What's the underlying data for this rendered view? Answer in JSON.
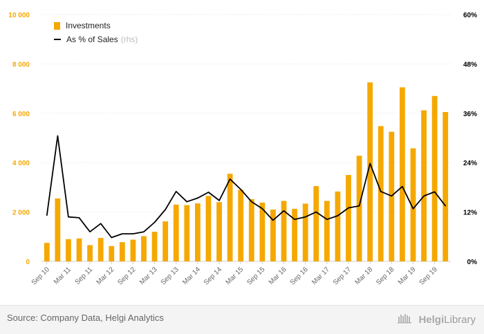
{
  "chart_data": {
    "type": "bar",
    "categories": [
      "Sep 10",
      "Dec 10",
      "Mar 11",
      "Jun 11",
      "Sep 11",
      "Dec 11",
      "Mar 12",
      "Jun 12",
      "Sep 12",
      "Dec 12",
      "Mar 13",
      "Jun 13",
      "Sep 13",
      "Dec 13",
      "Mar 14",
      "Jun 14",
      "Sep 14",
      "Dec 14",
      "Mar 15",
      "Jun 15",
      "Sep 15",
      "Dec 15",
      "Mar 16",
      "Jun 16",
      "Sep 16",
      "Dec 16",
      "Mar 17",
      "Jun 17",
      "Sep 17",
      "Dec 17",
      "Mar 18",
      "Jun 18",
      "Sep 18",
      "Dec 18",
      "Mar 19",
      "Jun 19",
      "Sep 19",
      "Dec 19"
    ],
    "tick_labels": [
      "Sep 10",
      "Mar 11",
      "Sep 11",
      "Mar 12",
      "Sep 12",
      "Mar 13",
      "Sep 13",
      "Mar 14",
      "Sep 14",
      "Mar 15",
      "Sep 15",
      "Mar 16",
      "Sep 16",
      "Mar 17",
      "Sep 17",
      "Mar 18",
      "Sep 18",
      "Mar 19",
      "Sep 19"
    ],
    "series": [
      {
        "name": "Investments",
        "axis": "left",
        "kind": "bar",
        "color": "#f5a800",
        "values": [
          750,
          2550,
          900,
          930,
          660,
          950,
          620,
          780,
          880,
          1020,
          1200,
          1620,
          2300,
          2280,
          2350,
          2650,
          2400,
          3550,
          2900,
          2520,
          2380,
          2100,
          2450,
          2130,
          2340,
          3050,
          2450,
          2830,
          3500,
          4280,
          7250,
          5480,
          5250,
          7050,
          4580,
          6120,
          6700,
          6050
        ]
      },
      {
        "name": "As % of Sales",
        "axis": "right",
        "kind": "line",
        "color": "#000000",
        "values": [
          11.2,
          30.5,
          10.8,
          10.6,
          7.2,
          9.2,
          5.8,
          6.7,
          6.7,
          7.2,
          9.5,
          12.6,
          17.0,
          14.5,
          15.4,
          16.8,
          14.8,
          20.0,
          17.5,
          14.5,
          12.8,
          10.0,
          12.3,
          10.2,
          10.8,
          12.0,
          10.2,
          11.1,
          13.0,
          13.5,
          23.8,
          17.0,
          15.9,
          18.2,
          12.8,
          15.9,
          16.9,
          13.5
        ]
      }
    ],
    "y_left": {
      "ticks": [
        "0",
        "2 000",
        "4 000",
        "6 000",
        "8 000",
        "10 000"
      ],
      "range": [
        0,
        10000
      ],
      "color": "#f5a800"
    },
    "y_right": {
      "ticks": [
        "0%",
        "12%",
        "24%",
        "36%",
        "48%",
        "60%"
      ],
      "range": [
        0,
        60
      ],
      "color": "#000000"
    },
    "grid": true,
    "legend_position": "top-left"
  },
  "legend": {
    "investments_label": "Investments",
    "share_label": "As % of Sales",
    "share_suffix": "(rhs)"
  },
  "footer": {
    "source": "Source: Company Data, Helgi Analytics",
    "brand_prefix": "Helgi",
    "brand_suffix": "Library"
  }
}
